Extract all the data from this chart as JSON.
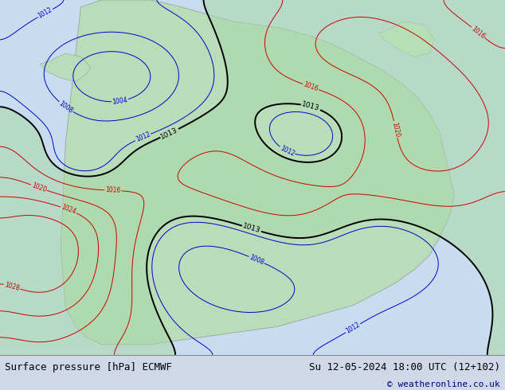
{
  "title_left": "Surface pressure [hPa] ECMWF",
  "title_right": "Su 12-05-2024 18:00 UTC (12+102)",
  "copyright": "© weatheronline.co.uk",
  "bg_color": "#d0d8e8",
  "land_color": "#b8ddb8",
  "ocean_color": "#c8dcf0",
  "contour_color_blue": "#0000cc",
  "contour_color_red": "#cc0000",
  "contour_color_black": "#000000",
  "footer_bg": "#f0f0f0",
  "footer_fontsize": 9,
  "copyright_fontsize": 8,
  "fig_width": 6.34,
  "fig_height": 4.9
}
